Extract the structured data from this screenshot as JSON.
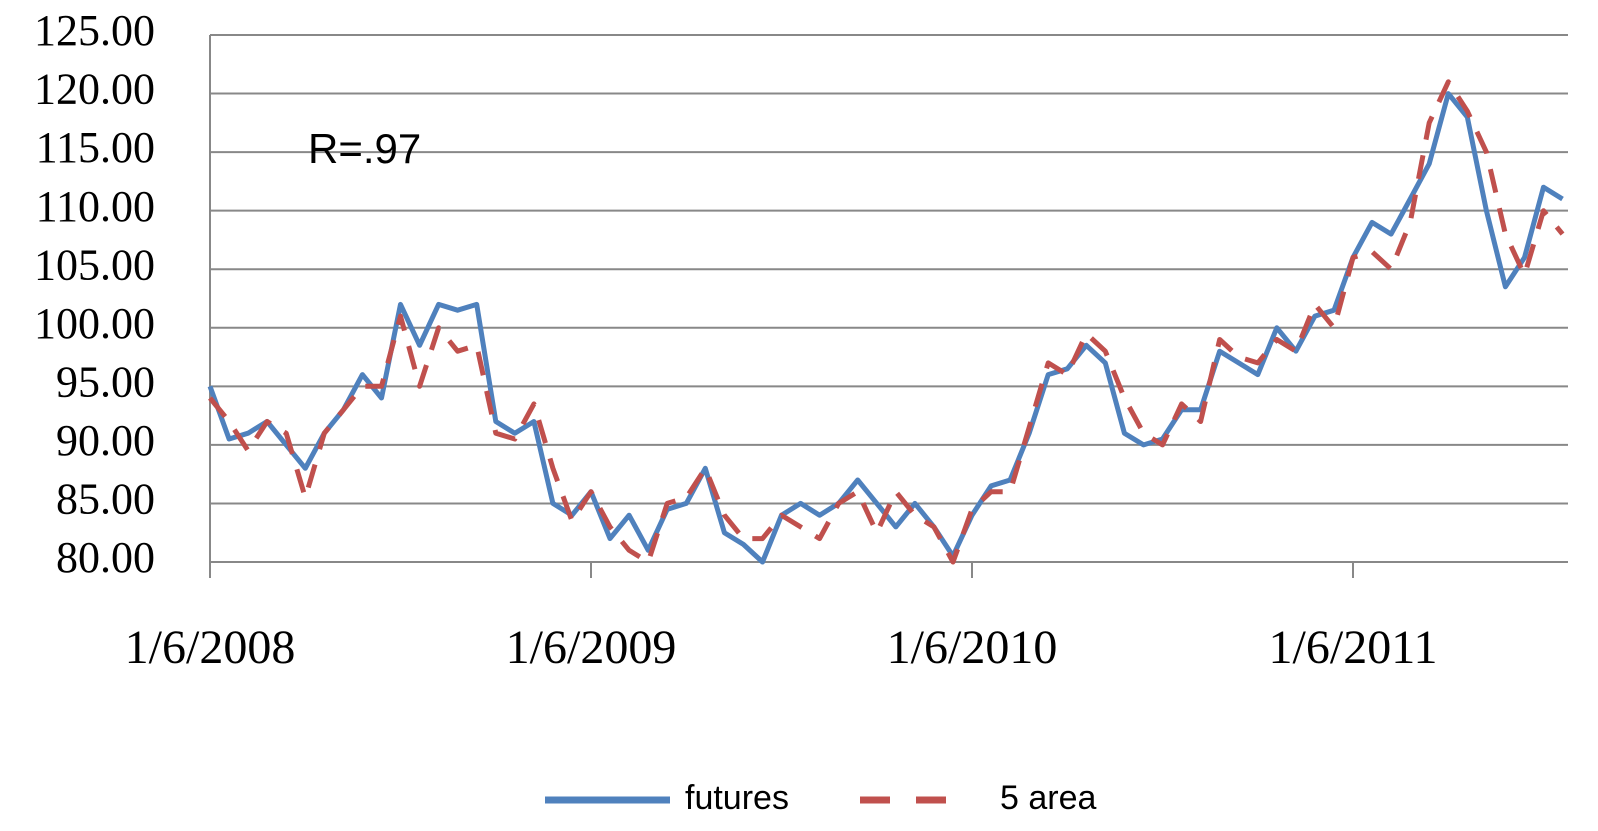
{
  "chart_data": {
    "type": "line",
    "annotation": "R=.97",
    "categories": [
      "1/6/2008",
      null,
      null,
      null,
      null,
      null,
      null,
      null,
      null,
      null,
      null,
      null,
      null,
      null,
      null,
      null,
      null,
      null,
      null,
      null,
      "1/6/2009",
      null,
      null,
      null,
      null,
      null,
      null,
      null,
      null,
      null,
      null,
      null,
      null,
      null,
      null,
      null,
      null,
      null,
      null,
      null,
      "1/6/2010",
      null,
      null,
      null,
      null,
      null,
      null,
      null,
      null,
      null,
      null,
      null,
      null,
      null,
      null,
      null,
      null,
      null,
      null,
      null,
      "1/6/2011",
      null,
      null,
      null,
      null,
      null,
      null,
      null,
      null,
      null,
      null,
      null
    ],
    "series": [
      {
        "name": "futures",
        "color": "#4f81bd",
        "dash": false,
        "values": [
          95,
          90.5,
          91,
          92,
          90,
          88,
          91,
          93,
          96,
          94,
          102,
          98.5,
          102,
          101.5,
          102,
          92,
          91,
          92,
          85,
          84,
          86,
          82,
          84,
          81,
          84.5,
          85,
          88,
          82.5,
          81.5,
          80,
          84,
          85,
          84,
          85,
          87,
          85,
          83,
          85,
          83,
          80.5,
          84,
          86.5,
          87,
          91,
          96,
          96.5,
          98.5,
          97,
          91,
          90,
          90.5,
          93,
          93,
          98,
          97,
          96,
          100,
          98,
          101,
          101.5,
          106,
          109,
          108,
          111,
          114,
          120,
          118,
          110,
          103.5,
          106,
          112,
          111
        ]
      },
      {
        "name": "5 area",
        "color": "#c0504d",
        "dash": true,
        "values": [
          94,
          92,
          89.5,
          92,
          91,
          85.5,
          91,
          93,
          95,
          95,
          101,
          95,
          100,
          98,
          98.5,
          91,
          90.5,
          93.5,
          88,
          83.5,
          86,
          83,
          81,
          80,
          85,
          85.5,
          88,
          84,
          82,
          82,
          84,
          83,
          82,
          85,
          86,
          82.5,
          86,
          84,
          83,
          80,
          84.5,
          86,
          86,
          91.5,
          97,
          96,
          99.5,
          98,
          94,
          91,
          90,
          93.5,
          92,
          99,
          97.5,
          97,
          99,
          98,
          102,
          100,
          106,
          106.5,
          105,
          109,
          117.5,
          121,
          118.5,
          115,
          108,
          104.5,
          110,
          108
        ]
      }
    ],
    "ylim": [
      80,
      125
    ],
    "yticks": [
      {
        "value": 80,
        "label": "80.00"
      },
      {
        "value": 85,
        "label": "85.00"
      },
      {
        "value": 90,
        "label": "90.00"
      },
      {
        "value": 95,
        "label": "95.00"
      },
      {
        "value": 100,
        "label": "100.00"
      },
      {
        "value": 105,
        "label": "105.00"
      },
      {
        "value": 110,
        "label": "110.00"
      },
      {
        "value": 115,
        "label": "115.00"
      },
      {
        "value": 120,
        "label": "120.00"
      },
      {
        "value": 125,
        "label": "125.00"
      }
    ],
    "grid": true,
    "legend": "bottom"
  }
}
